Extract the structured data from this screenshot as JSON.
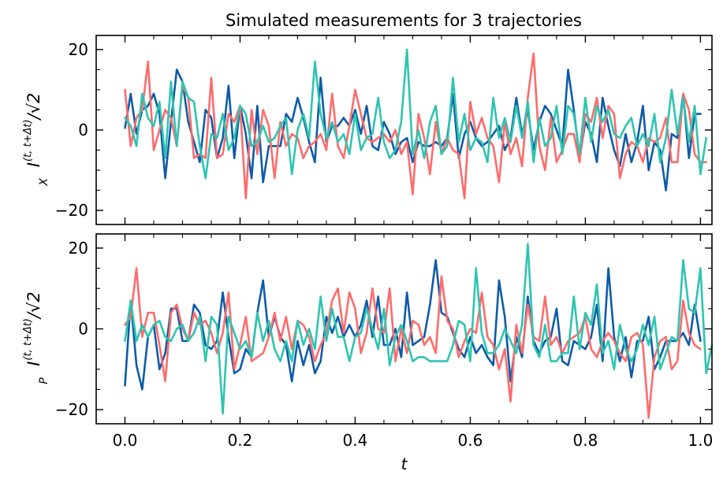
{
  "chart_data": [
    {
      "type": "line",
      "title": "Simulated measurements for 3 trajectories",
      "ylabel": {
        "symbol": "I",
        "superscript": "(t, t+Δt)",
        "subscript": "X",
        "suffix": "/√2"
      },
      "xlabel": "",
      "xlim": [
        -0.05,
        1.02
      ],
      "ylim": [
        -23.5,
        23.5
      ],
      "xticks": [
        0.0,
        0.2,
        0.4,
        0.6,
        0.8,
        1.0
      ],
      "yticks": [
        -20,
        0,
        20
      ],
      "ytick_labels": [
        "−20",
        "0",
        "20"
      ],
      "x_start": 0.0,
      "x_step": 0.01,
      "series": [
        {
          "color": "#0d5ba8",
          "values": [
            0.5,
            9,
            -1,
            5,
            6,
            9,
            4,
            -12,
            2,
            15,
            12,
            2,
            -3,
            -8,
            5,
            3,
            -7,
            -2,
            11,
            -7,
            6,
            -1,
            -12,
            6,
            -13,
            -4,
            -4,
            -4,
            4,
            2,
            8,
            3,
            -3,
            -8,
            13,
            -3,
            1,
            1,
            3,
            1,
            5,
            -1,
            6,
            -4,
            -5,
            2,
            -1,
            -6,
            -3,
            -2,
            -8,
            -3,
            -4,
            -4,
            -3,
            -4,
            -2,
            9,
            -7,
            -1,
            2,
            -2,
            -4,
            -3,
            -1,
            1,
            -5,
            -2,
            8,
            -1,
            5,
            -5,
            2,
            6,
            4,
            0,
            -4,
            15,
            5,
            -7,
            2,
            -1,
            -8,
            8,
            1,
            -5,
            -9,
            -1,
            -8,
            -3,
            6,
            -10,
            -3,
            -5,
            -15,
            -1,
            -2,
            9,
            -7,
            4,
            4
          ]
        },
        {
          "color": "#ff6b6b",
          "values": [
            10,
            -4,
            3,
            5,
            17,
            -5,
            0,
            5,
            3,
            -4,
            11,
            8,
            -7,
            -6,
            -7,
            13,
            -7,
            -6,
            4,
            2,
            6,
            -17,
            5,
            -6,
            5,
            1,
            -12,
            2,
            -4,
            -1,
            -2,
            -7,
            -4,
            -3,
            -1,
            -5,
            9,
            -4,
            -7,
            1,
            10,
            4,
            -2,
            -3,
            -2,
            -1,
            -3,
            0,
            -6,
            -3,
            -16,
            4,
            -2,
            -11,
            2,
            -6,
            -2,
            -5,
            -6,
            -17,
            7,
            -1,
            3,
            -2,
            -4,
            -13,
            2,
            -6,
            -2,
            -9,
            8,
            19,
            -4,
            -10,
            3,
            -8,
            -5,
            -1,
            -1,
            -8,
            4,
            2,
            8,
            -2,
            6,
            4,
            -12,
            -6,
            -3,
            -4,
            -8,
            -2,
            -3,
            -2,
            3,
            -8,
            -8,
            9,
            5,
            -6,
            -8,
            -8
          ]
        },
        {
          "color": "#2ec4b0",
          "values": [
            3,
            1,
            -4,
            9,
            3,
            1,
            7,
            -7,
            12,
            -4,
            12,
            8,
            7,
            -4,
            -12,
            -1,
            -2,
            4,
            -5,
            -2,
            6,
            4,
            -4,
            -3,
            1,
            -3,
            -2,
            1,
            3,
            -11,
            0,
            4,
            -2,
            17,
            4,
            -2,
            2,
            -3,
            -1,
            -6,
            4,
            -5,
            -2,
            -1,
            8,
            -3,
            -7,
            -5,
            2,
            20,
            -6,
            0,
            -7,
            2,
            6,
            -6,
            -4,
            13,
            -3,
            4,
            -5,
            -2,
            -3,
            -8,
            8,
            -2,
            3,
            -3,
            6,
            -2,
            7,
            -8,
            3,
            -4,
            -2,
            6,
            -6,
            6,
            4,
            -6,
            8,
            -3,
            6,
            2,
            5,
            -1,
            -2,
            1,
            3,
            -4,
            -1,
            -4,
            4,
            -8,
            -2,
            10,
            -1,
            8,
            -3,
            6,
            -11,
            -2
          ]
        }
      ]
    },
    {
      "type": "line",
      "ylabel": {
        "symbol": "I",
        "superscript": "(t, t+Δt)",
        "subscript": "P",
        "suffix": "/√2"
      },
      "xlabel": "t",
      "xlim": [
        -0.05,
        1.02
      ],
      "ylim": [
        -23.5,
        23.5
      ],
      "xticks": [
        0.0,
        0.2,
        0.4,
        0.6,
        0.8,
        1.0
      ],
      "xtick_labels": [
        "0.0",
        "0.2",
        "0.4",
        "0.6",
        "0.8",
        "1.0"
      ],
      "yticks": [
        -20,
        0,
        20
      ],
      "ytick_labels": [
        "−20",
        "0",
        "20"
      ],
      "x_start": 0.0,
      "x_step": 0.01,
      "series": [
        {
          "color": "#0d5ba8",
          "values": [
            -14,
            7,
            -9,
            -15,
            -2,
            1,
            -10,
            -6,
            5,
            5,
            -3,
            -3,
            6,
            4,
            -4,
            -5,
            -3,
            9,
            -2,
            -11,
            -10,
            -5,
            -7,
            4,
            12,
            -2,
            3,
            -2,
            -4,
            -13,
            -3,
            -9,
            -4,
            -11,
            -8,
            3,
            -1,
            3,
            -2,
            1,
            -2,
            1,
            7,
            -2,
            8,
            -4,
            -4,
            0,
            -7,
            9,
            -4,
            -3,
            -2,
            6,
            17,
            4,
            3,
            -1,
            -5,
            -7,
            -2,
            -6,
            -4,
            -7,
            -9,
            12,
            3,
            -13,
            -2,
            -7,
            8,
            -3,
            -6,
            -3,
            -2,
            5,
            -8,
            -9,
            -3,
            -4,
            -5,
            -2,
            6,
            -8,
            15,
            -2,
            -8,
            -2,
            -12,
            -3,
            -3,
            3,
            -10,
            -7,
            -3,
            -3,
            -3,
            -1,
            -4,
            6,
            -3
          ]
        },
        {
          "color": "#ff6b6b",
          "values": [
            1,
            3,
            15,
            -2,
            4,
            4,
            -4,
            -13,
            4,
            6,
            0,
            -3,
            4,
            1,
            2,
            -1,
            -6,
            -1,
            9,
            -10,
            -4,
            3,
            -8,
            -7,
            -6,
            -2,
            4,
            -3,
            3,
            -5,
            2,
            1,
            -2,
            -8,
            -4,
            -1,
            7,
            10,
            -1,
            9,
            5,
            -6,
            -1,
            10,
            0,
            -1,
            10,
            -8,
            0,
            -6,
            2,
            1,
            -4,
            -2,
            -6,
            13,
            2,
            0,
            -7,
            -3,
            0,
            -1,
            9,
            -2,
            -4,
            -10,
            -5,
            -18,
            1,
            -6,
            6,
            -2,
            -3,
            8,
            -4,
            -2,
            -6,
            -3,
            -2,
            -1,
            3,
            -5,
            -7,
            -3,
            -1,
            -3,
            -6,
            -8,
            -2,
            -1,
            -4,
            -22,
            -7,
            -3,
            -2,
            -10,
            -8,
            7,
            -1,
            -4,
            -5
          ]
        },
        {
          "color": "#2ec4b0",
          "values": [
            -3,
            7,
            -3,
            1,
            -2,
            1,
            2,
            -2,
            -3,
            0,
            1,
            -3,
            -1,
            3,
            -8,
            3,
            1,
            -21,
            3,
            -1,
            -5,
            -3,
            -7,
            4,
            -3,
            2,
            -5,
            -8,
            -3,
            -8,
            2,
            -4,
            0,
            -5,
            8,
            -3,
            5,
            -2,
            -2,
            -8,
            -2,
            -1,
            5,
            0,
            -5,
            5,
            -9,
            -2,
            1,
            -3,
            -8,
            -7,
            -7,
            -8,
            -8,
            -8,
            -8,
            -4,
            2,
            1,
            -8,
            15,
            -1,
            -6,
            -6,
            -4,
            0,
            -3,
            -6,
            1,
            21,
            -4,
            -7,
            1,
            -8,
            -8,
            -6,
            -6,
            8,
            -5,
            4,
            1,
            11,
            -6,
            -3,
            -10,
            1,
            -5,
            -8,
            -5,
            1,
            -4,
            3,
            -10,
            -6,
            -2,
            -3,
            17,
            5,
            4,
            15,
            -11,
            -4
          ]
        }
      ]
    }
  ]
}
